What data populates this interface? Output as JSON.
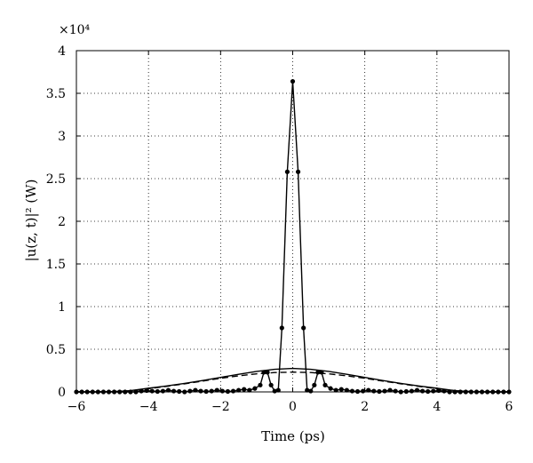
{
  "chart_data": {
    "type": "line",
    "title": "",
    "xlabel": "Time (ps)",
    "ylabel": "|u(z, t)|² (W)",
    "y_scale_label": "×10⁴",
    "y_scale_factor": 10000,
    "xlim": [
      -6,
      6
    ],
    "ylim": [
      0,
      40000
    ],
    "grid": true,
    "x_ticks": [
      -6,
      -4,
      -2,
      0,
      2,
      4,
      6
    ],
    "x_tick_labels": [
      "−6",
      "−4",
      "−2",
      "0",
      "2",
      "4",
      "6"
    ],
    "y_ticks": [
      0,
      5000,
      10000,
      15000,
      20000,
      25000,
      30000,
      35000,
      40000
    ],
    "y_tick_labels": [
      "0",
      "0.5",
      "1",
      "1.5",
      "2",
      "2.5",
      "3",
      "3.5",
      "4"
    ],
    "series": [
      {
        "style": "solid-with-dots",
        "x": [
          -6.0,
          -5.85,
          -5.7,
          -5.55,
          -5.4,
          -5.25,
          -5.1,
          -4.95,
          -4.8,
          -4.65,
          -4.5,
          -4.35,
          -4.2,
          -4.05,
          -3.9,
          -3.75,
          -3.6,
          -3.45,
          -3.3,
          -3.15,
          -3.0,
          -2.85,
          -2.7,
          -2.55,
          -2.4,
          -2.25,
          -2.1,
          -1.95,
          -1.8,
          -1.65,
          -1.5,
          -1.35,
          -1.2,
          -1.05,
          -0.9,
          -0.8,
          -0.7,
          -0.6,
          -0.5,
          -0.4,
          -0.3,
          -0.15,
          0.0,
          0.15,
          0.3,
          0.4,
          0.5,
          0.6,
          0.7,
          0.8,
          0.9,
          1.05,
          1.2,
          1.35,
          1.5,
          1.65,
          1.8,
          1.95,
          2.1,
          2.25,
          2.4,
          2.55,
          2.7,
          2.85,
          3.0,
          3.15,
          3.3,
          3.45,
          3.6,
          3.75,
          3.9,
          4.05,
          4.2,
          4.35,
          4.5,
          4.65,
          4.8,
          4.95,
          5.1,
          5.25,
          5.4,
          5.55,
          5.7,
          5.85,
          6.0
        ],
        "y": [
          0,
          0,
          0,
          0,
          0,
          0,
          0,
          0,
          0,
          0,
          0,
          0,
          100,
          150,
          100,
          50,
          100,
          200,
          100,
          50,
          0,
          100,
          200,
          100,
          50,
          100,
          200,
          100,
          50,
          100,
          200,
          300,
          200,
          400,
          800,
          2300,
          2300,
          800,
          100,
          200,
          7500,
          25800,
          36400,
          25800,
          7500,
          200,
          100,
          800,
          2300,
          2300,
          800,
          400,
          200,
          300,
          200,
          100,
          50,
          100,
          200,
          100,
          50,
          100,
          200,
          100,
          0,
          50,
          100,
          200,
          100,
          50,
          100,
          150,
          100,
          0,
          0,
          0,
          0,
          0,
          0,
          0,
          0,
          0,
          0,
          0,
          0
        ]
      },
      {
        "style": "solid",
        "x": [
          -6.0,
          -5.5,
          -5.0,
          -4.5,
          -4.0,
          -3.5,
          -3.0,
          -2.5,
          -2.0,
          -1.5,
          -1.0,
          -0.5,
          0.0,
          0.5,
          1.0,
          1.5,
          2.0,
          2.5,
          3.0,
          3.5,
          4.0,
          4.5,
          5.0,
          5.5,
          6.0
        ],
        "y": [
          0,
          0,
          20,
          150,
          430,
          700,
          1000,
          1330,
          1700,
          2070,
          2400,
          2650,
          2750,
          2650,
          2400,
          2070,
          1700,
          1330,
          1000,
          700,
          430,
          150,
          20,
          0,
          0
        ]
      },
      {
        "style": "dashed",
        "x": [
          -6.0,
          -5.5,
          -5.0,
          -4.5,
          -4.0,
          -3.5,
          -3.0,
          -2.5,
          -2.0,
          -1.5,
          -1.0,
          -0.5,
          0.0,
          0.5,
          1.0,
          1.5,
          2.0,
          2.5,
          3.0,
          3.5,
          4.0,
          4.5,
          5.0,
          5.5,
          6.0
        ],
        "y": [
          0,
          0,
          30,
          120,
          380,
          650,
          950,
          1270,
          1600,
          1880,
          2120,
          2270,
          2320,
          2270,
          2120,
          1880,
          1600,
          1270,
          950,
          650,
          380,
          120,
          30,
          0,
          0
        ]
      }
    ]
  }
}
